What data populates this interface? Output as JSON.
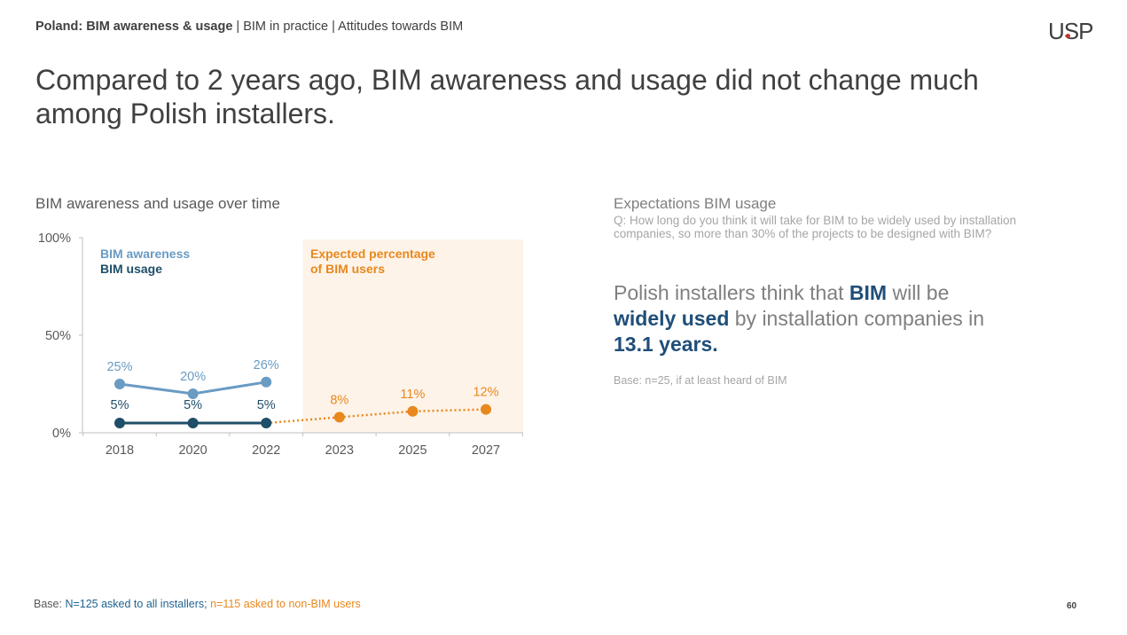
{
  "header": {
    "breadcrumb_bold": "Poland: BIM awareness & usage",
    "breadcrumb_rest": " | BIM in practice | Attitudes towards BIM",
    "logo": "USP",
    "title": "Compared to 2 years ago, BIM awareness and usage did not change much among Polish installers."
  },
  "left_panel": {
    "chart_title": "BIM awareness and usage over time"
  },
  "chart_data": {
    "type": "line",
    "title": "BIM awareness and usage over time",
    "categories": [
      "2018",
      "2020",
      "2022",
      "2023",
      "2025",
      "2027"
    ],
    "y_ticks": [
      "100%",
      "50%",
      "0%"
    ],
    "ylim": [
      0,
      100
    ],
    "series": [
      {
        "name": "BIM awareness",
        "color": "#6a9bc3",
        "x": [
          "2018",
          "2020",
          "2022"
        ],
        "values": [
          25,
          20,
          26
        ],
        "labels": [
          "25%",
          "20%",
          "26%"
        ],
        "style": "solid"
      },
      {
        "name": "BIM usage",
        "color": "#1f4e68",
        "x": [
          "2018",
          "2020",
          "2022"
        ],
        "values": [
          5,
          5,
          5
        ],
        "labels": [
          "5%",
          "5%",
          "5%"
        ],
        "style": "solid"
      },
      {
        "name": "Expected percentage of BIM users",
        "color": "#e8881d",
        "x": [
          "2023",
          "2025",
          "2027"
        ],
        "values": [
          8,
          11,
          12
        ],
        "labels": [
          "8%",
          "11%",
          "12%"
        ],
        "style": "dotted"
      }
    ],
    "legend": {
      "awareness": "BIM awareness",
      "usage": "BIM usage",
      "expected_line1": "Expected percentage",
      "expected_line2": "of BIM users"
    },
    "shaded_region": {
      "from": "2023",
      "to": "2027",
      "color": "#fdf3e9"
    },
    "grid": false
  },
  "right_panel": {
    "title": "Expectations BIM usage",
    "question": "Q: How long do you think it will take for BIM to be widely used by installation companies, so more than 30% of the projects to be designed with BIM?",
    "statement_parts": [
      " Polish installers think that ",
      "BIM",
      " will be ",
      "widely used",
      " by installation companies in ",
      "13.1 years."
    ],
    "base": "Base: n=25, if at least heard of BIM"
  },
  "footer": {
    "base_prefix": "Base: ",
    "base_blue": "N=125 asked to all installers; ",
    "base_orange": "n=115 asked to non-BIM users",
    "page_number": "60"
  }
}
